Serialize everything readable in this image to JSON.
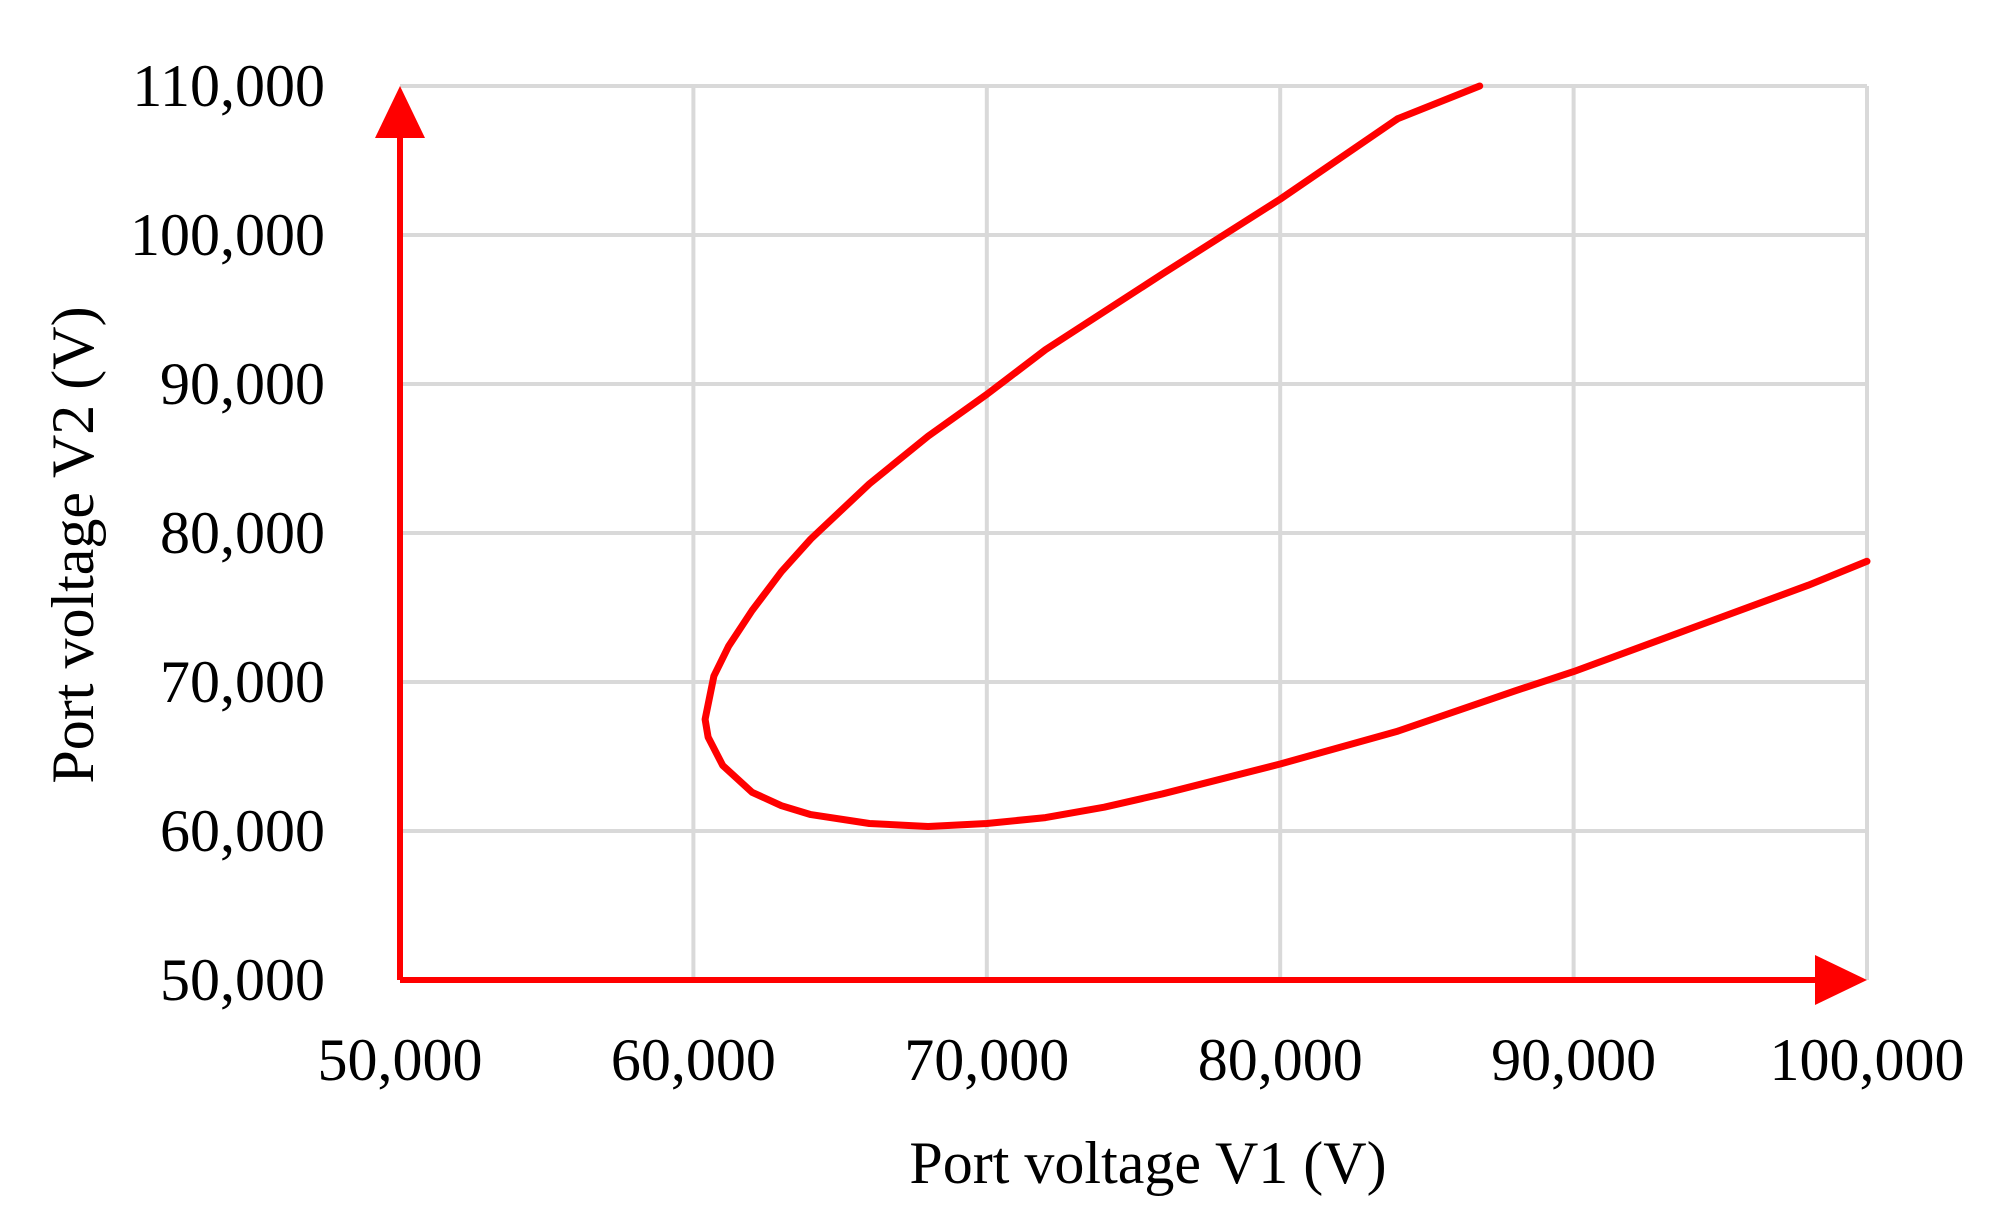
{
  "chart_data": {
    "type": "line",
    "title": "",
    "xlabel": "Port voltage V1 (V)",
    "ylabel": "Port voltage V2 (V)",
    "xlim": [
      50000,
      100000
    ],
    "ylim": [
      50000,
      110000
    ],
    "x_ticks": [
      "50,000",
      "60,000",
      "70,000",
      "80,000",
      "90,000",
      "100,000"
    ],
    "y_ticks": [
      "50,000",
      "60,000",
      "70,000",
      "80,000",
      "90,000",
      "100,000",
      "110,000"
    ],
    "grid": true,
    "legend": "none",
    "axis_color": "#ff0000",
    "series": [
      {
        "color": "#ff0000",
        "points": [
          [
            86800,
            110000
          ],
          [
            84000,
            107800
          ],
          [
            80000,
            102400
          ],
          [
            76000,
            97400
          ],
          [
            72000,
            92300
          ],
          [
            70000,
            89300
          ],
          [
            68000,
            86500
          ],
          [
            66000,
            83300
          ],
          [
            64000,
            79600
          ],
          [
            63000,
            77400
          ],
          [
            62000,
            74800
          ],
          [
            61200,
            72400
          ],
          [
            60700,
            70400
          ],
          [
            60400,
            67500
          ],
          [
            60500,
            66300
          ],
          [
            61000,
            64400
          ],
          [
            62000,
            62600
          ],
          [
            63000,
            61700
          ],
          [
            64000,
            61100
          ],
          [
            66000,
            60500
          ],
          [
            68000,
            60300
          ],
          [
            70000,
            60500
          ],
          [
            72000,
            60900
          ],
          [
            74000,
            61600
          ],
          [
            76000,
            62500
          ],
          [
            80000,
            64500
          ],
          [
            84000,
            66700
          ],
          [
            88000,
            69400
          ],
          [
            90000,
            70700
          ],
          [
            94000,
            73600
          ],
          [
            98000,
            76500
          ],
          [
            100000,
            78100
          ]
        ]
      }
    ]
  }
}
